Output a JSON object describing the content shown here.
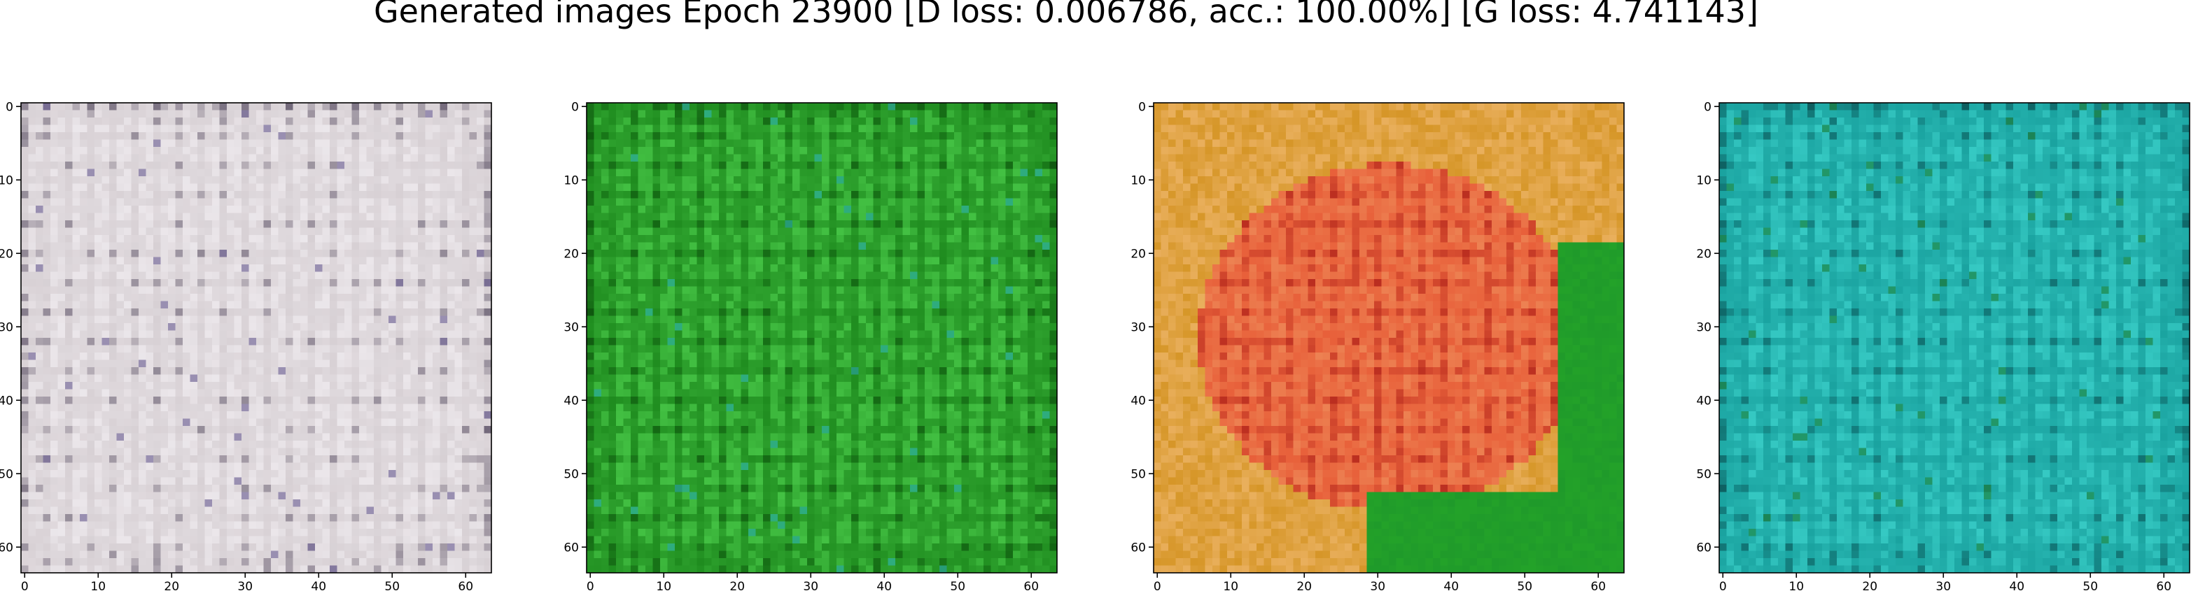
{
  "figure": {
    "title": "Generated images Epoch 23900 [D loss: 0.006786, acc.: 100.00%] [G loss: 4.741143]"
  },
  "panels": [
    {
      "name": "panel-1",
      "palette": "grey-white",
      "colors": {
        "base": "#d7d0d4",
        "light": "#f2eef2",
        "dark": "#3a2f48",
        "accent": "#7b6f9e"
      },
      "x_ticks": [
        "0",
        "10",
        "20",
        "30",
        "40",
        "50",
        "60"
      ],
      "y_ticks": [
        "0",
        "10",
        "20",
        "30",
        "40",
        "50",
        "60"
      ]
    },
    {
      "name": "panel-2",
      "palette": "green",
      "colors": {
        "base": "#1f8c1f",
        "light": "#4fd24f",
        "dark": "#063a06",
        "accent": "#2fb0a0"
      },
      "x_ticks": [
        "0",
        "10",
        "20",
        "30",
        "40",
        "50",
        "60"
      ],
      "y_ticks": [
        "0",
        "10",
        "20",
        "30",
        "40",
        "50",
        "60"
      ]
    },
    {
      "name": "panel-3",
      "palette": "orange-red-green",
      "colors": {
        "base": "#e8603a",
        "light": "#f6c080",
        "dark": "#a01010",
        "accent": "#1f9a2a"
      },
      "x_ticks": [
        "0",
        "10",
        "20",
        "30",
        "40",
        "50",
        "60"
      ],
      "y_ticks": [
        "0",
        "10",
        "20",
        "30",
        "40",
        "50",
        "60"
      ]
    },
    {
      "name": "panel-4",
      "palette": "teal",
      "colors": {
        "base": "#1aa3a0",
        "light": "#3fd6cf",
        "dark": "#06363a",
        "accent": "#1f8c4a"
      },
      "x_ticks": [
        "0",
        "10",
        "20",
        "30",
        "40",
        "50",
        "60"
      ],
      "y_ticks": [
        "0",
        "10",
        "20",
        "30",
        "40",
        "50",
        "60"
      ]
    }
  ]
}
